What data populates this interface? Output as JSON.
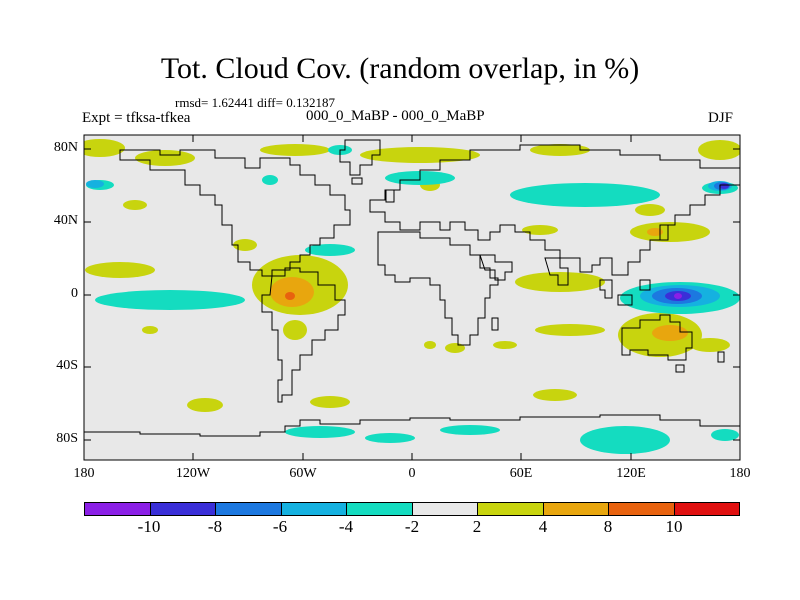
{
  "title": "Tot. Cloud Cov. (random overlap, in %)",
  "stats": "rmsd= 1.62441  diff= 0.132187",
  "left_label": "Expt = tfksa-tfkea",
  "center_label": "000_0_MaBP - 000_0_MaBP",
  "right_label": "DJF",
  "map": {
    "y_ticks": [
      "80N",
      "40N",
      "0",
      "40S",
      "80S"
    ],
    "x_ticks": [
      "180",
      "120W",
      "60W",
      "0",
      "60E",
      "120E",
      "180"
    ],
    "anomalies": [
      {
        "name": "south-america-positive",
        "category": "4 to 8"
      },
      {
        "name": "western-pacific-negative",
        "category": "-10 to -8"
      },
      {
        "name": "australia-positive",
        "category": "4 to 8"
      },
      {
        "name": "north-pacific-negative",
        "category": "-10 to -8"
      }
    ]
  },
  "colorbar": {
    "colors": [
      "#8b1fe6",
      "#3a2fd8",
      "#1c78e0",
      "#15b1e0",
      "#14dcc0",
      "#e8e8e8",
      "#c8d40e",
      "#e8a60e",
      "#e8620e",
      "#e01010"
    ],
    "labels": [
      "-10",
      "-8",
      "-6",
      "-4",
      "-2",
      "2",
      "4",
      "8",
      "10"
    ]
  }
}
